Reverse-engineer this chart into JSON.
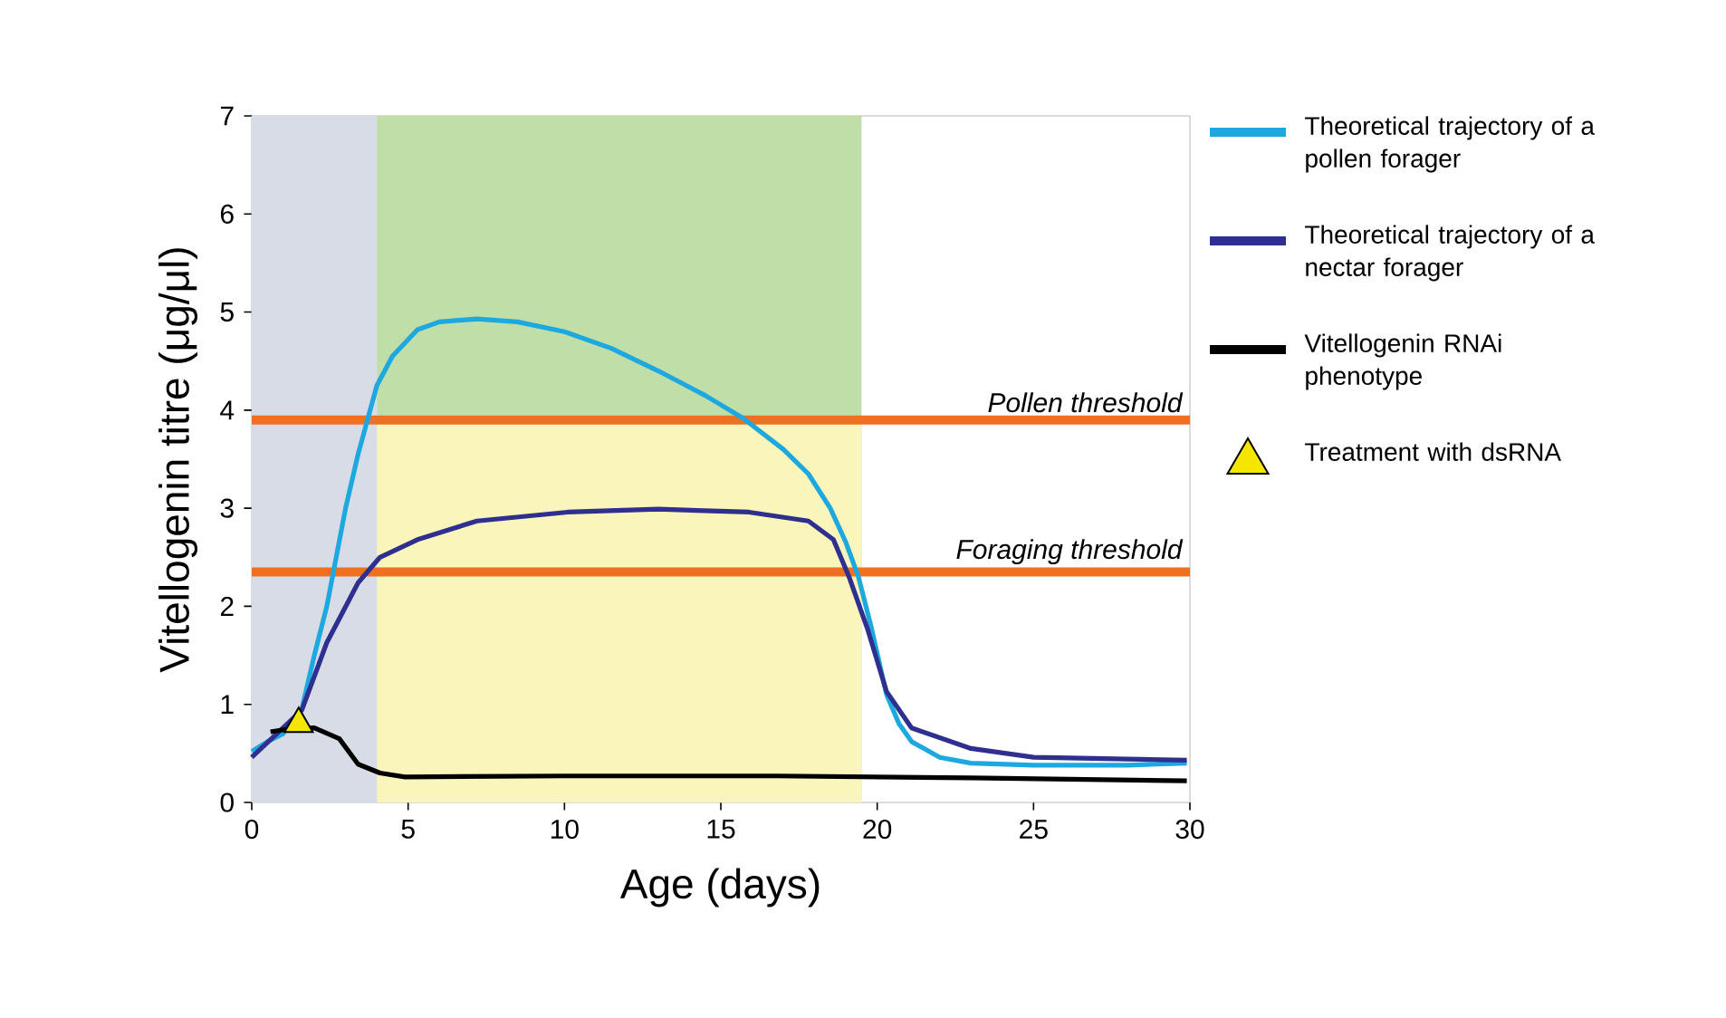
{
  "chart_data": {
    "type": "line",
    "xlabel": "Age (days)",
    "ylabel": "Vitellogenin titre (μg/μl)",
    "xlim": [
      0,
      30
    ],
    "ylim": [
      0,
      7
    ],
    "xticks": [
      0,
      5,
      10,
      15,
      20,
      25,
      30
    ],
    "yticks": [
      0,
      1,
      2,
      3,
      4,
      5,
      6,
      7
    ],
    "legend": "right",
    "grid": false,
    "bands": [
      {
        "axis": "x",
        "from": 0,
        "to": 4,
        "color": "#d8dce6"
      }
    ],
    "ref_lines": [
      {
        "axis": "y",
        "value": 3.9,
        "label": "Pollen threshold",
        "color": "#f07022"
      },
      {
        "axis": "y",
        "value": 2.35,
        "label": "Foraging threshold",
        "color": "#f07022"
      }
    ],
    "series": [
      {
        "type": "area",
        "color": "#c0dea8",
        "x": [
          4,
          19.5
        ],
        "values": [
          7,
          7
        ]
      },
      {
        "type": "area",
        "color": "#faf5bb",
        "x": [
          4,
          19.5
        ],
        "values": [
          3.9,
          3.9
        ]
      },
      {
        "name": "Theoretical trajectory of a pollen forager",
        "color": "#1ea8e0",
        "x": [
          0,
          0.5,
          1,
          1.6,
          2,
          2.4,
          3,
          3.4,
          4,
          4.5,
          5.3,
          6,
          7.2,
          8.5,
          10,
          11.5,
          13,
          14.5,
          15.7,
          17,
          17.8,
          18.5,
          19,
          19.4,
          19.8,
          20.3,
          20.7,
          21.1,
          22,
          23,
          25,
          28,
          29.9
        ],
        "values": [
          0.52,
          0.62,
          0.7,
          0.95,
          1.5,
          2.0,
          3.0,
          3.55,
          4.25,
          4.55,
          4.82,
          4.9,
          4.93,
          4.9,
          4.8,
          4.63,
          4.4,
          4.15,
          3.92,
          3.6,
          3.35,
          3.0,
          2.65,
          2.3,
          1.8,
          1.1,
          0.8,
          0.62,
          0.46,
          0.4,
          0.38,
          0.38,
          0.4
        ]
      },
      {
        "name": "Theoretical trajectory of a nectar forager",
        "color": "#2e2f8e",
        "x": [
          0,
          0.8,
          1.6,
          2.4,
          3.4,
          4.1,
          5.3,
          7.2,
          10.1,
          13,
          15.9,
          17.8,
          18.6,
          19.1,
          19.7,
          20.3,
          21.1,
          23,
          25,
          29.9
        ],
        "values": [
          0.46,
          0.7,
          0.94,
          1.63,
          2.24,
          2.5,
          2.68,
          2.87,
          2.96,
          2.99,
          2.96,
          2.87,
          2.68,
          2.3,
          1.76,
          1.13,
          0.76,
          0.55,
          0.46,
          0.43
        ]
      },
      {
        "name": "Vitellogenin RNAi phenotype",
        "color": "#000000",
        "x": [
          0.6,
          1.2,
          2,
          2.8,
          3.4,
          4.1,
          4.9,
          10,
          16.8,
          23,
          29.9
        ],
        "values": [
          0.72,
          0.75,
          0.76,
          0.65,
          0.39,
          0.3,
          0.26,
          0.27,
          0.27,
          0.25,
          0.22
        ]
      },
      {
        "type": "scatter",
        "name": "Treatment with dsRNA",
        "color": "#f5e600",
        "marker": "triangle",
        "x": [
          1.5
        ],
        "values": [
          0.8
        ]
      }
    ]
  }
}
